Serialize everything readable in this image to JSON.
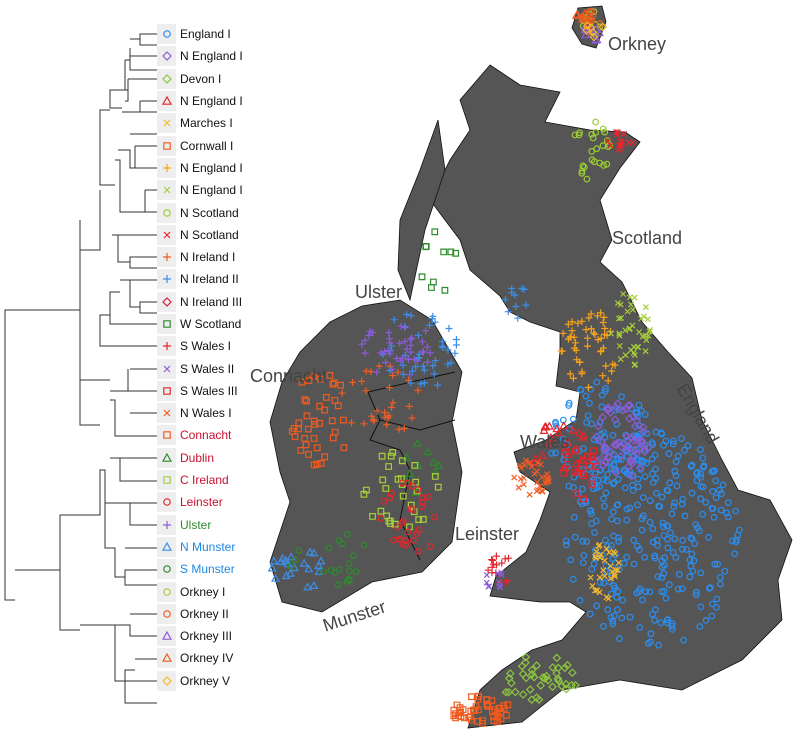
{
  "legend": [
    {
      "label": "England I",
      "shape": "circle",
      "color": "#2a8ef0",
      "text_color": "#111111"
    },
    {
      "label": "N England I",
      "shape": "diamond",
      "color": "#8a5cd6",
      "text_color": "#111111"
    },
    {
      "label": "Devon I",
      "shape": "diamond",
      "color": "#8dc63f",
      "text_color": "#111111"
    },
    {
      "label": "N England I",
      "shape": "triangle",
      "color": "#e3262c",
      "text_color": "#111111"
    },
    {
      "label": "Marches I",
      "shape": "cross",
      "color": "#f5b82e",
      "text_color": "#111111"
    },
    {
      "label": "Cornwall I",
      "shape": "square",
      "color": "#f05a1e",
      "text_color": "#111111"
    },
    {
      "label": "N England I",
      "shape": "plus",
      "color": "#f7a21b",
      "text_color": "#111111"
    },
    {
      "label": "N England I",
      "shape": "cross",
      "color": "#a6ce39",
      "text_color": "#111111"
    },
    {
      "label": "N Scotland",
      "shape": "circle",
      "color": "#9acd32",
      "text_color": "#111111"
    },
    {
      "label": "N Scotland",
      "shape": "cross",
      "color": "#e8262c",
      "text_color": "#111111"
    },
    {
      "label": "N Ireland I",
      "shape": "plus",
      "color": "#f25c20",
      "text_color": "#111111"
    },
    {
      "label": "N Ireland II",
      "shape": "plus",
      "color": "#3b8ee8",
      "text_color": "#111111"
    },
    {
      "label": "N Ireland III",
      "shape": "diamond",
      "color": "#d81b3c",
      "text_color": "#111111"
    },
    {
      "label": "W Scotland",
      "shape": "square",
      "color": "#2e8b2e",
      "text_color": "#111111"
    },
    {
      "label": "S Wales I",
      "shape": "plus",
      "color": "#e3262c",
      "text_color": "#111111"
    },
    {
      "label": "S Wales II",
      "shape": "cross",
      "color": "#8a5cd6",
      "text_color": "#111111"
    },
    {
      "label": "S Wales III",
      "shape": "square",
      "color": "#e3262c",
      "text_color": "#111111"
    },
    {
      "label": "N Wales I",
      "shape": "cross",
      "color": "#f25c20",
      "text_color": "#111111"
    },
    {
      "label": "Connacht",
      "shape": "square",
      "color": "#f05a1e",
      "text_color": "#c8102e"
    },
    {
      "label": "Dublin",
      "shape": "triangle",
      "color": "#2e8b2e",
      "text_color": "#c8102e"
    },
    {
      "label": "C Ireland",
      "shape": "square",
      "color": "#a6ce39",
      "text_color": "#c8102e"
    },
    {
      "label": "Leinster",
      "shape": "circle",
      "color": "#e3262c",
      "text_color": "#c8102e"
    },
    {
      "label": "Ulster",
      "shape": "plus",
      "color": "#8a5cd6",
      "text_color": "#2e8b2e"
    },
    {
      "label": "N Munster",
      "shape": "triangle",
      "color": "#3b8ee8",
      "text_color": "#1e88e5"
    },
    {
      "label": "S Munster",
      "shape": "circle",
      "color": "#2e8b2e",
      "text_color": "#1e88e5"
    },
    {
      "label": "Orkney I",
      "shape": "circle",
      "color": "#a6ce39",
      "text_color": "#111111"
    },
    {
      "label": "Orkney II",
      "shape": "circle",
      "color": "#f25c20",
      "text_color": "#111111"
    },
    {
      "label": "Orkney III",
      "shape": "triangle",
      "color": "#8a5cd6",
      "text_color": "#111111"
    },
    {
      "label": "Orkney IV",
      "shape": "triangle",
      "color": "#f05a1e",
      "text_color": "#111111"
    },
    {
      "label": "Orkney V",
      "shape": "diamond",
      "color": "#f5b82e",
      "text_color": "#111111"
    }
  ],
  "map": {
    "land_color": "#555555",
    "regions": {
      "orkney": "Orkney",
      "scotland": "Scotland",
      "ulster": "Ulster",
      "connacht": "Connacht",
      "england": "England",
      "wales": "Wales",
      "leinster": "Leinster",
      "munster": "Munster"
    }
  }
}
